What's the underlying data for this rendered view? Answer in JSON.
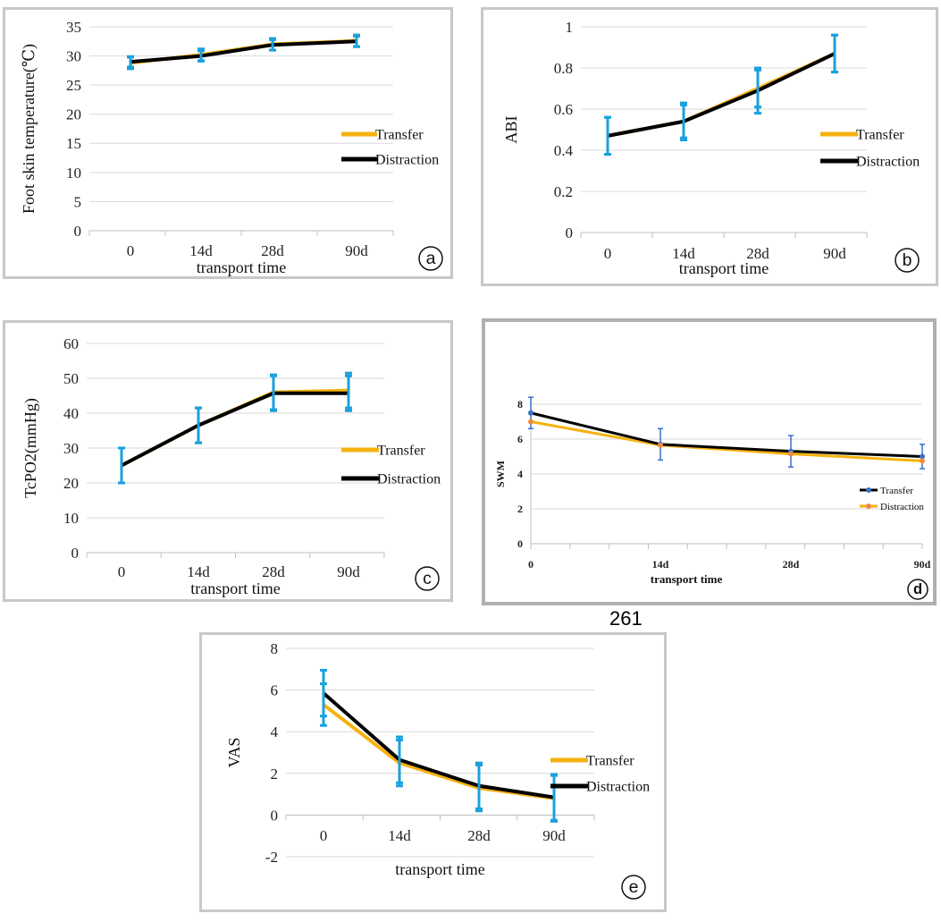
{
  "page_number": "261",
  "chart_data": [
    {
      "id": "a",
      "type": "line",
      "panel_label": "a",
      "categories": [
        "0",
        "14d",
        "28d",
        "90d"
      ],
      "xlabel": "transport time",
      "ylabel": "Foot skin temperature(℃)",
      "ylim": [
        0,
        35
      ],
      "yticks": [
        0,
        5,
        10,
        15,
        20,
        25,
        30,
        35
      ],
      "grid": true,
      "series": [
        {
          "name": "Transfer",
          "color": "#f5b20f",
          "values": [
            28.8,
            30.2,
            32.0,
            32.6
          ],
          "errors": [
            1.0,
            1.0,
            1.0,
            1.0
          ]
        },
        {
          "name": "Distraction",
          "color": "#000000",
          "values": [
            29.0,
            30.0,
            31.9,
            32.5
          ],
          "errors": [
            0.9,
            0.9,
            0.9,
            0.9
          ]
        }
      ]
    },
    {
      "id": "b",
      "type": "line",
      "panel_label": "b",
      "categories": [
        "0",
        "14d",
        "28d",
        "90d"
      ],
      "xlabel": "transport time",
      "ylabel": "ABI",
      "ylim": [
        0,
        1
      ],
      "yticks": [
        0,
        0.2,
        0.4,
        0.6,
        0.8,
        1
      ],
      "grid": true,
      "series": [
        {
          "name": "Transfer",
          "color": "#f5b20f",
          "values": [
            0.47,
            0.54,
            0.7,
            0.87
          ],
          "errors": [
            0.09,
            0.09,
            0.09,
            0.09
          ]
        },
        {
          "name": "Distraction",
          "color": "#000000",
          "values": [
            0.47,
            0.54,
            0.69,
            0.87
          ],
          "errors": [
            0.09,
            0.08,
            0.11,
            0.09
          ]
        }
      ]
    },
    {
      "id": "c",
      "type": "line",
      "panel_label": "c",
      "categories": [
        "0",
        "14d",
        "28d",
        "90d"
      ],
      "xlabel": "transport time",
      "ylabel": "TcPO2(mmHg)",
      "ylim": [
        0,
        60
      ],
      "yticks": [
        0,
        10,
        20,
        30,
        40,
        50,
        60
      ],
      "grid": true,
      "series": [
        {
          "name": "Transfer",
          "color": "#f5b20f",
          "values": [
            25,
            36.5,
            46,
            46.5
          ],
          "errors": [
            5,
            5,
            5,
            5
          ]
        },
        {
          "name": "Distraction",
          "color": "#000000",
          "values": [
            25,
            36.5,
            45.7,
            45.7
          ],
          "errors": [
            5,
            5,
            5,
            5
          ]
        }
      ]
    },
    {
      "id": "d",
      "type": "line",
      "panel_label": "d",
      "categories": [
        "0",
        "14d",
        "28d",
        "90d"
      ],
      "xlabel": "transport time",
      "ylabel": "SWM",
      "ylim": [
        0,
        8
      ],
      "yticks": [
        0,
        2,
        4,
        6,
        8
      ],
      "grid": true,
      "series": [
        {
          "name": "Transfer",
          "color": "#000000",
          "marker_color": "#3a6fc8",
          "values": [
            7.5,
            5.7,
            5.3,
            5.0
          ],
          "errors": [
            0.9,
            0.9,
            0.9,
            0.7
          ]
        },
        {
          "name": "Distraction",
          "color": "#f5b20f",
          "marker_color": "#f08a3c",
          "values": [
            7.0,
            5.65,
            5.15,
            4.75
          ],
          "errors": [
            0,
            0,
            0,
            0
          ]
        }
      ]
    },
    {
      "id": "e",
      "type": "line",
      "panel_label": "e",
      "categories": [
        "0",
        "14d",
        "28d",
        "90d"
      ],
      "xlabel": "transport time",
      "ylabel": "VAS",
      "ylim": [
        -2,
        8
      ],
      "yticks": [
        -2,
        0,
        2,
        4,
        6,
        8
      ],
      "grid": true,
      "series": [
        {
          "name": "Transfer",
          "color": "#f5b20f",
          "values": [
            5.3,
            2.5,
            1.3,
            0.8
          ],
          "errors": [
            1.0,
            1.1,
            1.1,
            1.1
          ]
        },
        {
          "name": "Distraction",
          "color": "#000000",
          "values": [
            5.85,
            2.65,
            1.4,
            0.85
          ],
          "errors": [
            1.1,
            1.1,
            1.1,
            1.1
          ]
        }
      ]
    }
  ]
}
